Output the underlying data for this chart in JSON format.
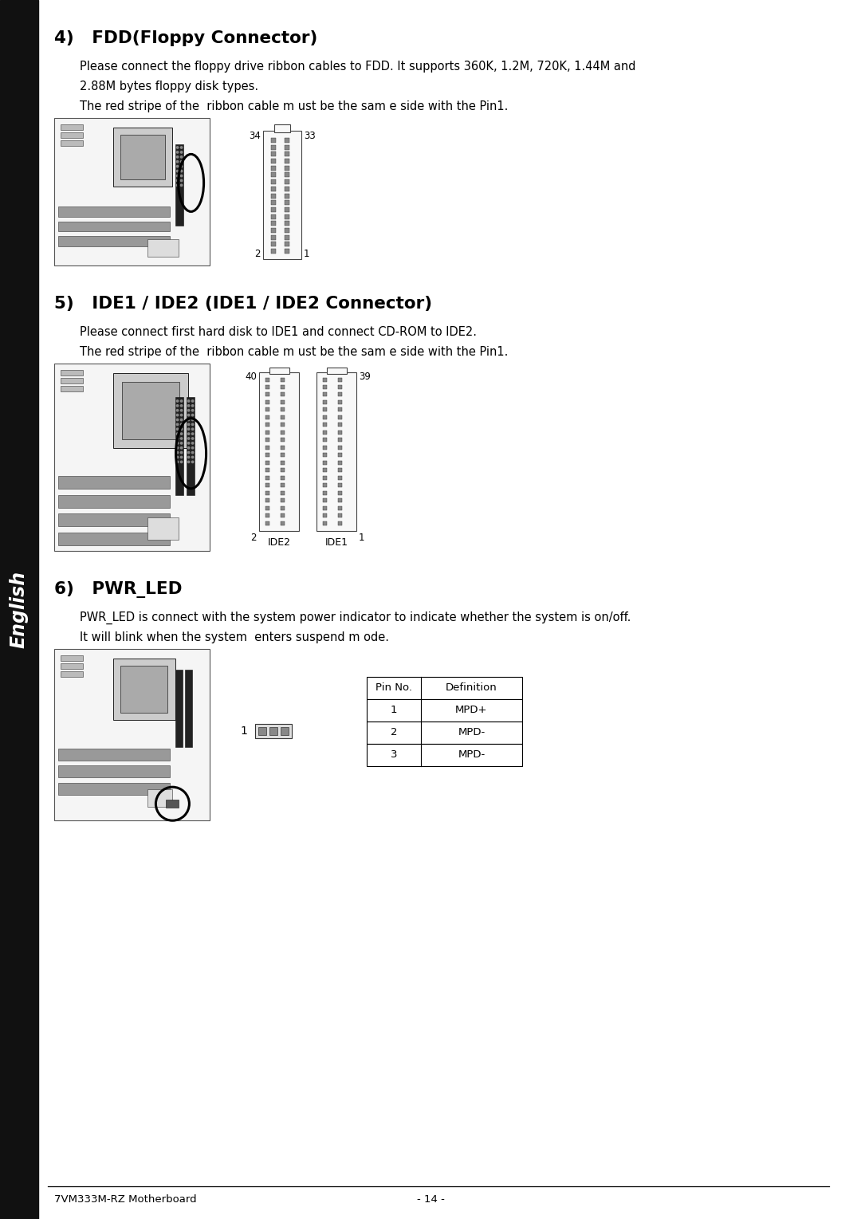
{
  "bg_color": "#ffffff",
  "sidebar_color": "#111111",
  "sidebar_text": "English",
  "page_title": "7VM333M-RZ Motherboard",
  "page_number": "- 14 -",
  "section4_title": "4)   FDD(Floppy Connector)",
  "section4_text1": "Please connect the floppy drive ribbon cables to FDD. It supports 360K, 1.2M, 720K, 1.44M and",
  "section4_text2": "2.88M bytes floppy disk types.",
  "section4_text3": "The red stripe of the  ribbon cable m ust be the sam e side with the Pin1.",
  "section5_title": "5)   IDE1 / IDE2 (IDE1 / IDE2 Connector)",
  "section5_text1": "Please connect first hard disk to IDE1 and connect CD-ROM to IDE2.",
  "section5_text2": "The red stripe of the  ribbon cable m ust be the sam e side with the Pin1.",
  "section6_title": "6)   PWR_LED",
  "section6_text1": "PWR_LED is connect with the system power indicator to indicate whether the system is on/off.",
  "section6_text2": "It will blink when the system  enters suspend m ode.",
  "table_headers": [
    "Pin No.",
    "Definition"
  ],
  "table_rows": [
    [
      "1",
      "MPD+"
    ],
    [
      "2",
      "MPD-"
    ],
    [
      "3",
      "MPD-"
    ]
  ]
}
